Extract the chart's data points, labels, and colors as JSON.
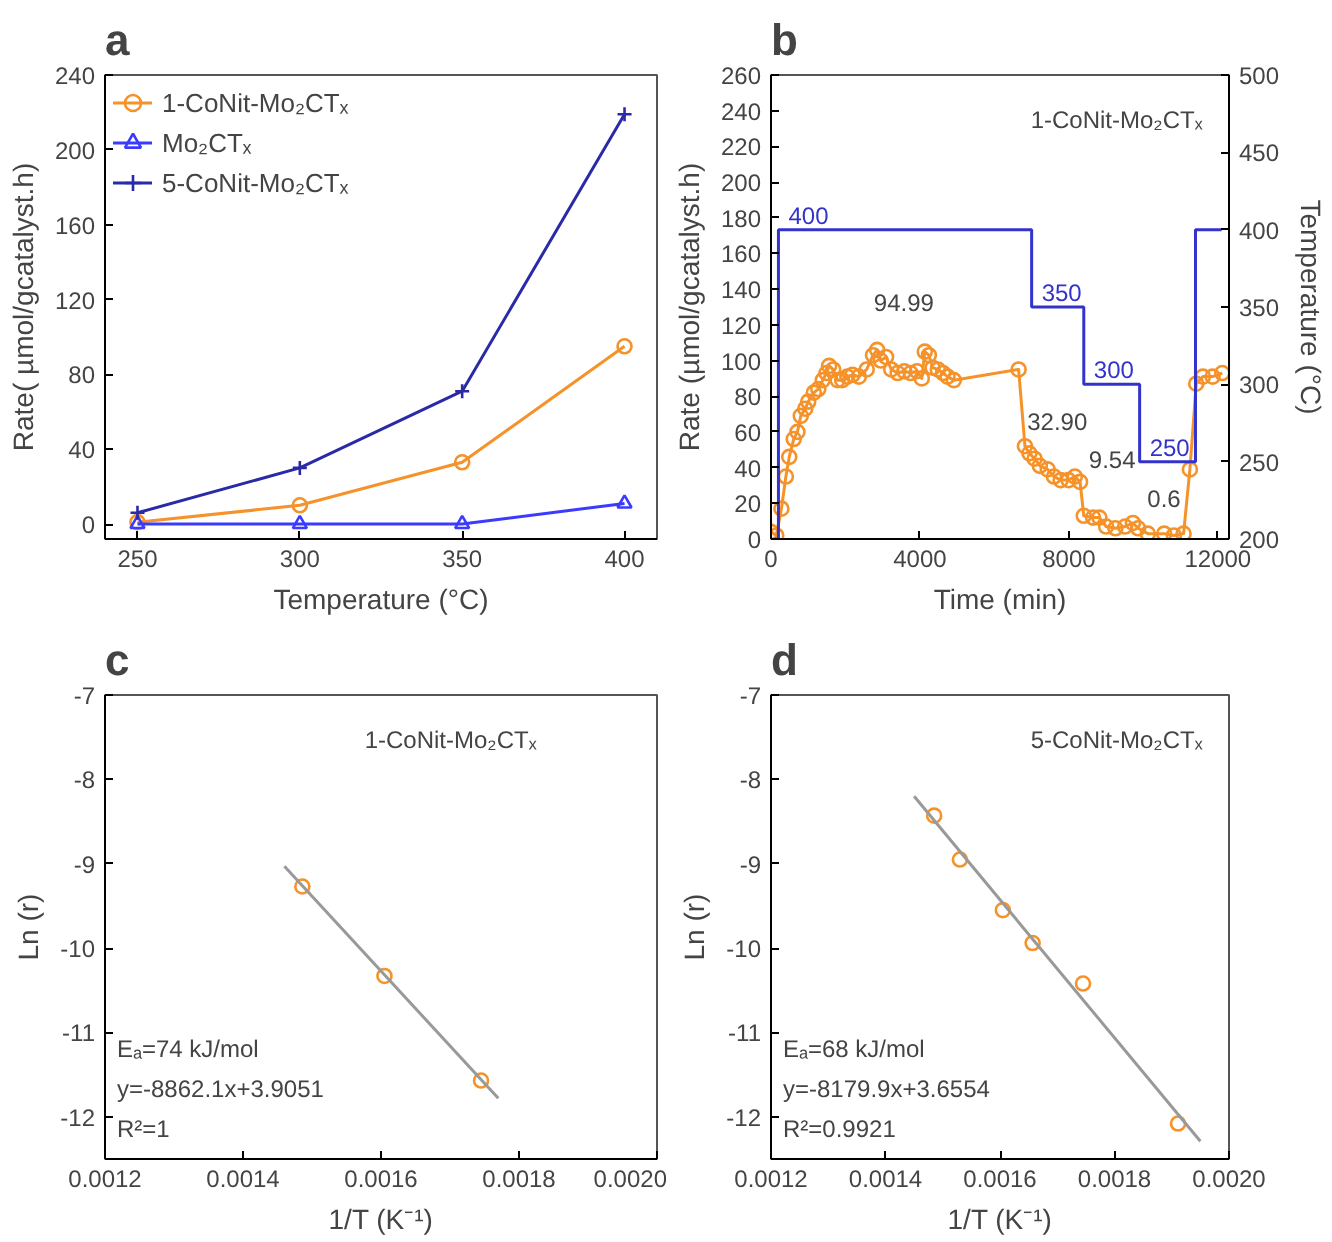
{
  "chart_data": [
    {
      "type": "line",
      "title": "a",
      "xlabel": "Temperature (°C)",
      "ylabel": "Rate( µmol/gcatalyst.h)",
      "x": [
        250,
        300,
        350,
        400
      ],
      "xlim": [
        240,
        410
      ],
      "ylim": [
        -8,
        240
      ],
      "xticks": [
        250,
        300,
        350,
        400
      ],
      "yticks": [
        0,
        40,
        80,
        120,
        160,
        200,
        240
      ],
      "grid": false,
      "legend": "top left",
      "series": [
        {
          "name": "1-CoNit-Mo₂CTₓ",
          "color": "#f5922a",
          "marker": "circle",
          "values": [
            1,
            10,
            33,
            95
          ]
        },
        {
          "name": "Mo₂CTₓ",
          "color": "#3b3bff",
          "marker": "triangle",
          "values": [
            0,
            0,
            0,
            11
          ]
        },
        {
          "name": "5-CoNit-Mo₂CTₓ",
          "color": "#2a2aa8",
          "marker": "cross",
          "values": [
            6,
            30,
            71,
            219
          ]
        }
      ]
    },
    {
      "type": "line",
      "title": "b",
      "xlabel": "Time (min)",
      "ylabel": "Rate (µmol/gcatalyst.h)",
      "y2label": "Temperature (°C)",
      "xlim": [
        0,
        12300
      ],
      "ylim": [
        0,
        260
      ],
      "y2lim": [
        200,
        500
      ],
      "xticks": [
        0,
        4000,
        8000,
        12000
      ],
      "yticks": [
        0,
        20,
        40,
        60,
        80,
        100,
        120,
        140,
        160,
        180,
        200,
        220,
        240,
        260
      ],
      "y2ticks": [
        200,
        250,
        300,
        350,
        400,
        450,
        500
      ],
      "grid": false,
      "annotations": [
        "1-CoNit-Mo₂CTₓ",
        "94.99",
        "32.90",
        "9.54",
        "0.6"
      ],
      "series": [
        {
          "type": "line",
          "color": "#f5922a",
          "marker": "circle",
          "x": [
            0,
            140,
            280,
            400,
            490,
            610,
            710,
            800,
            920,
            1000,
            1150,
            1270,
            1390,
            1490,
            1560,
            1670,
            1790,
            1910,
            2050,
            2190,
            2360,
            2570,
            2740,
            2850,
            2950,
            3090,
            3230,
            3400,
            3580,
            3750,
            3920,
            4050,
            4130,
            4240,
            4340,
            4480,
            4620,
            4740,
            4910,
            6650,
            6820,
            6940,
            7080,
            7220,
            7430,
            7600,
            7780,
            7990,
            8160,
            8300,
            8400,
            8650,
            8820,
            9000,
            9250,
            9510,
            9720,
            9860,
            10120,
            10560,
            10820,
            11080,
            11250,
            11420,
            11600,
            11860,
            12120
          ],
          "values": [
            4,
            2,
            17,
            35,
            46,
            56,
            60,
            69,
            73,
            77,
            82,
            84,
            89,
            93,
            97,
            95,
            89,
            89,
            91,
            92,
            91,
            95,
            103,
            106,
            100,
            102,
            95,
            93,
            94,
            93,
            94,
            90,
            105,
            103,
            96,
            95,
            93,
            91,
            89,
            95,
            52,
            48,
            45,
            41,
            39,
            35,
            33,
            33,
            35,
            32,
            13,
            12,
            12,
            7,
            6,
            7,
            9,
            6,
            3,
            3,
            2,
            3,
            39,
            87,
            91,
            91,
            93
          ]
        },
        {
          "type": "step",
          "axis": "y2",
          "color": "#3333cc",
          "marker": "none",
          "x": [
            100,
            200,
            7000,
            8400,
            9900,
            11400,
            12100
          ],
          "values": [
            200,
            400,
            350,
            300,
            250,
            400,
            400
          ],
          "value_labels": [
            null,
            "400",
            "350",
            "300",
            "250",
            null,
            null
          ]
        }
      ]
    },
    {
      "type": "scatter",
      "title": "c",
      "xlabel": "1/T (K⁻¹)",
      "ylabel": "Ln (r)",
      "xlim": [
        0.0012,
        0.002
      ],
      "ylim": [
        -12.5,
        -7
      ],
      "xticks": [
        0.0012,
        0.0014,
        0.0016,
        0.0018,
        {
          "value": 0.002,
          "label": "0.0020"
        }
      ],
      "yticks": [
        -7,
        -8,
        -9,
        -10,
        -11,
        -12
      ],
      "grid": false,
      "marker": "circle",
      "annotations": [
        "1-CoNit-Mo₂CTₓ",
        "Eₐ=74 kJ/mol",
        "y=-8862.1x+3.9051",
        "R²=1"
      ],
      "series": [
        {
          "color": "#f5922a",
          "x": [
            0.001486,
            0.001605,
            0.001745
          ],
          "values": [
            -9.27,
            -10.33,
            -11.57
          ]
        },
        {
          "type": "line",
          "color": "#999999",
          "marker": "none",
          "x": [
            0.00146,
            0.00177
          ],
          "values": [
            -9.03,
            -11.78
          ]
        }
      ]
    },
    {
      "type": "scatter",
      "title": "d",
      "xlabel": "1/T (K⁻¹)",
      "ylabel": "Ln (r)",
      "xlim": [
        0.0012,
        0.002
      ],
      "ylim": [
        -12.5,
        -7
      ],
      "xticks": [
        0.0012,
        0.0014,
        0.0016,
        0.0018,
        {
          "value": 0.002,
          "label": "0.0020"
        }
      ],
      "yticks": [
        -7,
        -8,
        -9,
        -10,
        -11,
        -12
      ],
      "grid": false,
      "marker": "circle",
      "annotations": [
        "5-CoNit-Mo₂CTₓ",
        "Eₐ=68 kJ/mol",
        "y=-8179.9x+3.6554",
        "R²=0.9921"
      ],
      "series": [
        {
          "color": "#f5922a",
          "x": [
            0.001485,
            0.00153,
            0.001605,
            0.001657,
            0.001745,
            0.001911
          ],
          "values": [
            -8.43,
            -8.95,
            -9.55,
            -9.94,
            -10.42,
            -12.08
          ]
        },
        {
          "type": "line",
          "color": "#999999",
          "marker": "none",
          "x": [
            0.00145,
            0.00195
          ],
          "values": [
            -8.2,
            -12.29
          ]
        }
      ]
    }
  ]
}
